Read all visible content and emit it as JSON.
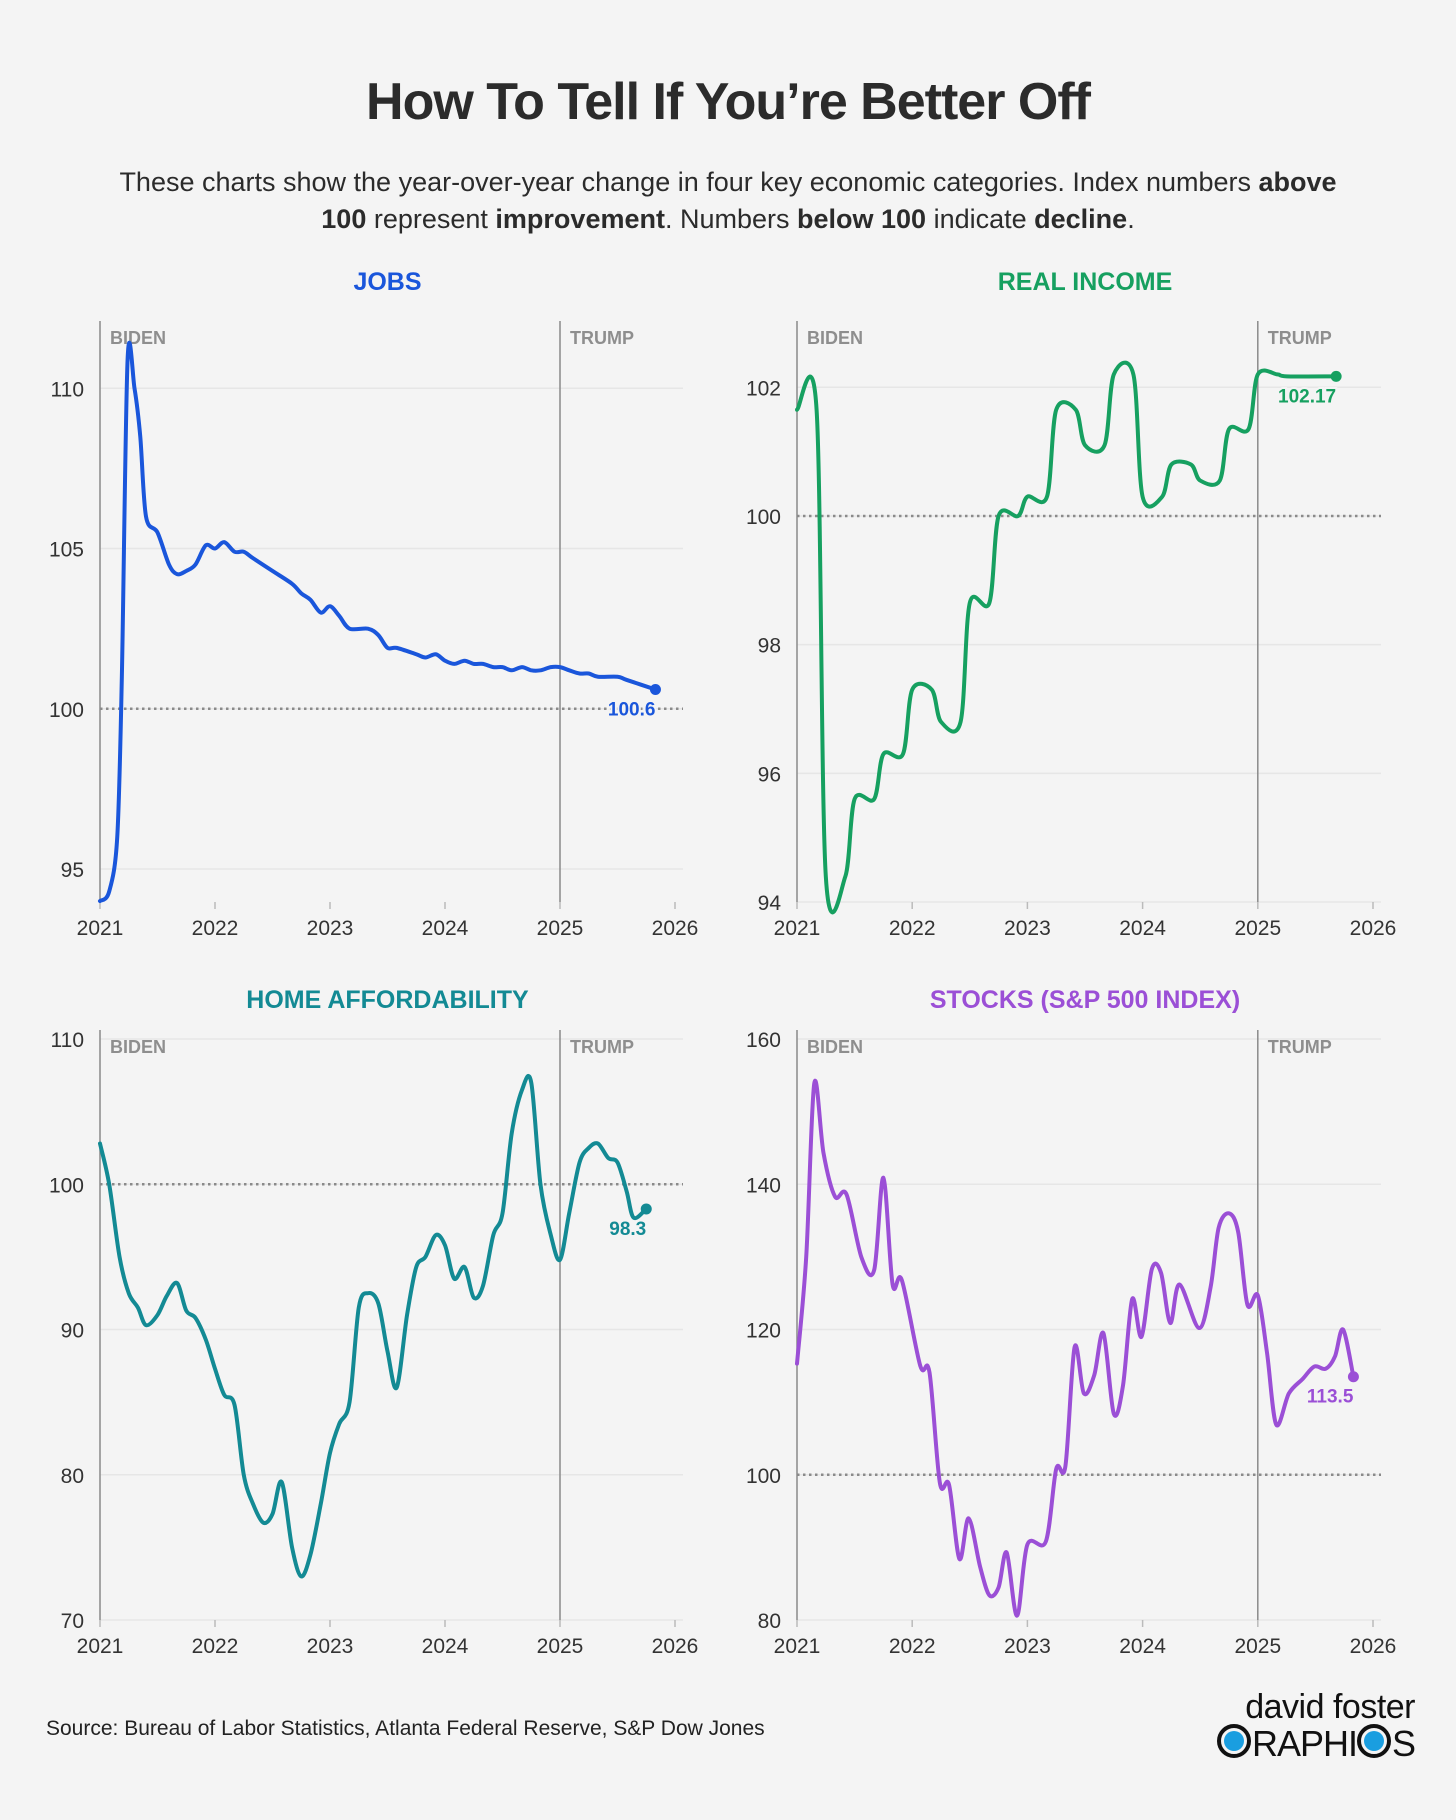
{
  "title": "How To Tell If You’re Better Off",
  "subtitle": {
    "line1": [
      {
        "text": "These charts show the year-over-year change in four key economic categories. Index numbers ",
        "bold": false
      },
      {
        "text": "above",
        "bold": true
      }
    ],
    "line2": [
      {
        "text": "100",
        "bold": true
      },
      {
        "text": " represent ",
        "bold": false
      },
      {
        "text": "improvement",
        "bold": true
      },
      {
        "text": ". Numbers ",
        "bold": false
      },
      {
        "text": "below 100",
        "bold": true
      },
      {
        "text": " indicate ",
        "bold": false
      },
      {
        "text": "decline",
        "bold": true
      },
      {
        "text": ".",
        "bold": false
      }
    ]
  },
  "source": "Source: Bureau of Labor Statistics, Atlanta Federal Reserve, S&P Dow Jones",
  "logo": {
    "line1": "david foster",
    "line2": "GRAPHICS"
  },
  "colors": {
    "background": "#f4f4f4",
    "axis": "#8a8a8a",
    "grid": "#e6e6e6",
    "era_label": "#8e8e8e",
    "reference": "#8a8a8a"
  },
  "chart_data": [
    {
      "type": "line",
      "title": "JOBS",
      "color": "#1a56db",
      "smooth": true,
      "xlim": [
        2021,
        2026
      ],
      "xticks": [
        "2021",
        "2022",
        "2023",
        "2024",
        "2025",
        "2026"
      ],
      "ylim": [
        93.97,
        112.1
      ],
      "yticks": [
        95,
        100,
        105,
        110
      ],
      "reference_line": 100,
      "eras": [
        {
          "label": "BIDEN",
          "start": 2021
        },
        {
          "label": "TRUMP",
          "start": 2025
        }
      ],
      "end_label": "100.6",
      "x": [
        2021.0,
        2021.08,
        2021.15,
        2021.19,
        2021.24,
        2021.3,
        2021.35,
        2021.4,
        2021.5,
        2021.6,
        2021.67,
        2021.75,
        2021.83,
        2021.92,
        2022.0,
        2022.08,
        2022.17,
        2022.25,
        2022.33,
        2022.5,
        2022.67,
        2022.75,
        2022.83,
        2022.92,
        2023.0,
        2023.08,
        2023.17,
        2023.33,
        2023.42,
        2023.5,
        2023.58,
        2023.75,
        2023.83,
        2023.92,
        2024.0,
        2024.08,
        2024.17,
        2024.25,
        2024.33,
        2024.42,
        2024.5,
        2024.58,
        2024.67,
        2024.75,
        2024.83,
        2024.92,
        2025.0,
        2025.08,
        2025.17,
        2025.25,
        2025.33,
        2025.5,
        2025.58,
        2025.83
      ],
      "y": [
        94.0,
        94.3,
        96.0,
        101.0,
        110.9,
        110.0,
        108.5,
        106.0,
        105.5,
        104.5,
        104.2,
        104.3,
        104.5,
        105.1,
        105.0,
        105.2,
        104.9,
        104.9,
        104.7,
        104.3,
        103.9,
        103.6,
        103.4,
        103.0,
        103.2,
        102.9,
        102.5,
        102.5,
        102.3,
        101.9,
        101.9,
        101.7,
        101.6,
        101.7,
        101.5,
        101.4,
        101.5,
        101.4,
        101.4,
        101.3,
        101.3,
        101.2,
        101.3,
        101.2,
        101.2,
        101.3,
        101.3,
        101.2,
        101.1,
        101.1,
        101.0,
        101.0,
        100.9,
        100.6
      ]
    },
    {
      "type": "line",
      "title": "REAL INCOME",
      "color": "#16a060",
      "smooth": true,
      "xlim": [
        2021,
        2026
      ],
      "xticks": [
        "2021",
        "2022",
        "2023",
        "2024",
        "2025",
        "2026"
      ],
      "ylim": [
        94,
        103.03
      ],
      "yticks": [
        94,
        96,
        98,
        100,
        102
      ],
      "reference_line": 100,
      "eras": [
        {
          "label": "BIDEN",
          "start": 2021
        },
        {
          "label": "TRUMP",
          "start": 2025
        }
      ],
      "end_label": "102.17",
      "x": [
        2021.0,
        2021.17,
        2021.25,
        2021.42,
        2021.5,
        2021.67,
        2021.75,
        2021.92,
        2022.0,
        2022.17,
        2022.25,
        2022.42,
        2022.5,
        2022.67,
        2022.75,
        2022.92,
        2023.0,
        2023.17,
        2023.25,
        2023.42,
        2023.5,
        2023.67,
        2023.75,
        2023.92,
        2024.0,
        2024.17,
        2024.25,
        2024.42,
        2024.5,
        2024.67,
        2024.75,
        2024.92,
        2025.0,
        2025.17,
        2025.25,
        2025.68
      ],
      "y": [
        101.65,
        101.65,
        94.4,
        94.4,
        95.6,
        95.6,
        96.3,
        96.3,
        97.3,
        97.3,
        96.8,
        96.8,
        98.65,
        98.65,
        100.0,
        100.0,
        100.3,
        100.3,
        101.65,
        101.65,
        101.1,
        101.1,
        102.2,
        102.2,
        100.3,
        100.3,
        100.8,
        100.8,
        100.55,
        100.55,
        101.35,
        101.35,
        102.2,
        102.2,
        102.17,
        102.17
      ]
    },
    {
      "type": "line",
      "title": "HOME AFFORDABILITY",
      "color": "#138a94",
      "smooth": true,
      "xlim": [
        2021,
        2026
      ],
      "xticks": [
        "2021",
        "2022",
        "2023",
        "2024",
        "2025",
        "2026"
      ],
      "ylim": [
        70,
        110
      ],
      "yticks": [
        70,
        80,
        90,
        100,
        110
      ],
      "reference_line": 100,
      "eras": [
        {
          "label": "BIDEN",
          "start": 2021
        },
        {
          "label": "TRUMP",
          "start": 2025
        }
      ],
      "end_label": "98.3",
      "x": [
        2021.0,
        2021.08,
        2021.17,
        2021.25,
        2021.33,
        2021.4,
        2021.5,
        2021.58,
        2021.67,
        2021.75,
        2021.83,
        2021.92,
        2022.0,
        2022.08,
        2022.17,
        2022.25,
        2022.33,
        2022.42,
        2022.5,
        2022.58,
        2022.67,
        2022.75,
        2022.83,
        2022.92,
        2023.0,
        2023.08,
        2023.17,
        2023.25,
        2023.33,
        2023.42,
        2023.5,
        2023.58,
        2023.67,
        2023.75,
        2023.83,
        2023.92,
        2024.0,
        2024.08,
        2024.17,
        2024.25,
        2024.33,
        2024.42,
        2024.5,
        2024.58,
        2024.67,
        2024.75,
        2024.83,
        2024.92,
        2025.0,
        2025.08,
        2025.17,
        2025.25,
        2025.33,
        2025.42,
        2025.5,
        2025.58,
        2025.64,
        2025.75
      ],
      "y": [
        102.8,
        100.0,
        95.0,
        92.5,
        91.5,
        90.3,
        91.0,
        92.3,
        93.2,
        91.3,
        90.8,
        89.3,
        87.3,
        85.5,
        84.8,
        80.0,
        78.0,
        76.7,
        77.3,
        79.5,
        75.0,
        73.0,
        74.5,
        78.0,
        81.5,
        83.5,
        85.0,
        91.5,
        92.5,
        91.8,
        88.5,
        86.0,
        91.0,
        94.3,
        95.0,
        96.5,
        95.8,
        93.5,
        94.3,
        92.2,
        93.0,
        96.5,
        98.0,
        103.5,
        106.5,
        107.0,
        100.0,
        96.5,
        94.8,
        98.0,
        101.5,
        102.5,
        102.8,
        101.8,
        101.5,
        99.5,
        97.7,
        98.3
      ]
    },
    {
      "type": "line",
      "title": "STOCKS (S&P 500 INDEX)",
      "color": "#9b4fd6",
      "smooth": true,
      "xlim": [
        2021,
        2026
      ],
      "xticks": [
        "2021",
        "2022",
        "2023",
        "2024",
        "2025",
        "2026"
      ],
      "ylim": [
        80,
        160
      ],
      "yticks": [
        80,
        100,
        120,
        140,
        160
      ],
      "reference_line": 100,
      "eras": [
        {
          "label": "BIDEN",
          "start": 2021
        },
        {
          "label": "TRUMP",
          "start": 2025
        }
      ],
      "end_label": "113.5",
      "x": [
        2021.0,
        2021.08,
        2021.15,
        2021.23,
        2021.33,
        2021.43,
        2021.56,
        2021.67,
        2021.75,
        2021.83,
        2021.91,
        2022.07,
        2022.15,
        2022.24,
        2022.32,
        2022.41,
        2022.49,
        2022.59,
        2022.67,
        2022.75,
        2022.82,
        2022.91,
        2023.0,
        2023.16,
        2023.25,
        2023.33,
        2023.41,
        2023.49,
        2023.58,
        2023.66,
        2023.75,
        2023.83,
        2023.91,
        2023.99,
        2024.08,
        2024.16,
        2024.24,
        2024.32,
        2024.49,
        2024.59,
        2024.66,
        2024.75,
        2024.83,
        2024.91,
        2025.0,
        2025.08,
        2025.16,
        2025.27,
        2025.39,
        2025.49,
        2025.59,
        2025.67,
        2025.74,
        2025.83
      ],
      "y": [
        115.3,
        130.0,
        153.9,
        144.3,
        138.3,
        138.6,
        129.9,
        128.2,
        140.9,
        126.2,
        126.8,
        115.0,
        114.1,
        98.9,
        98.6,
        88.4,
        94.0,
        87.3,
        83.4,
        84.5,
        89.3,
        80.6,
        90.4,
        90.8,
        100.8,
        101.2,
        117.6,
        111.2,
        113.7,
        119.5,
        108.4,
        112.3,
        124.2,
        119.0,
        128.3,
        127.8,
        120.9,
        126.2,
        120.2,
        125.8,
        134.0,
        136.0,
        133.4,
        123.4,
        124.7,
        116.8,
        106.9,
        111.2,
        113.2,
        114.9,
        114.6,
        116.3,
        120.0,
        113.5
      ]
    }
  ]
}
